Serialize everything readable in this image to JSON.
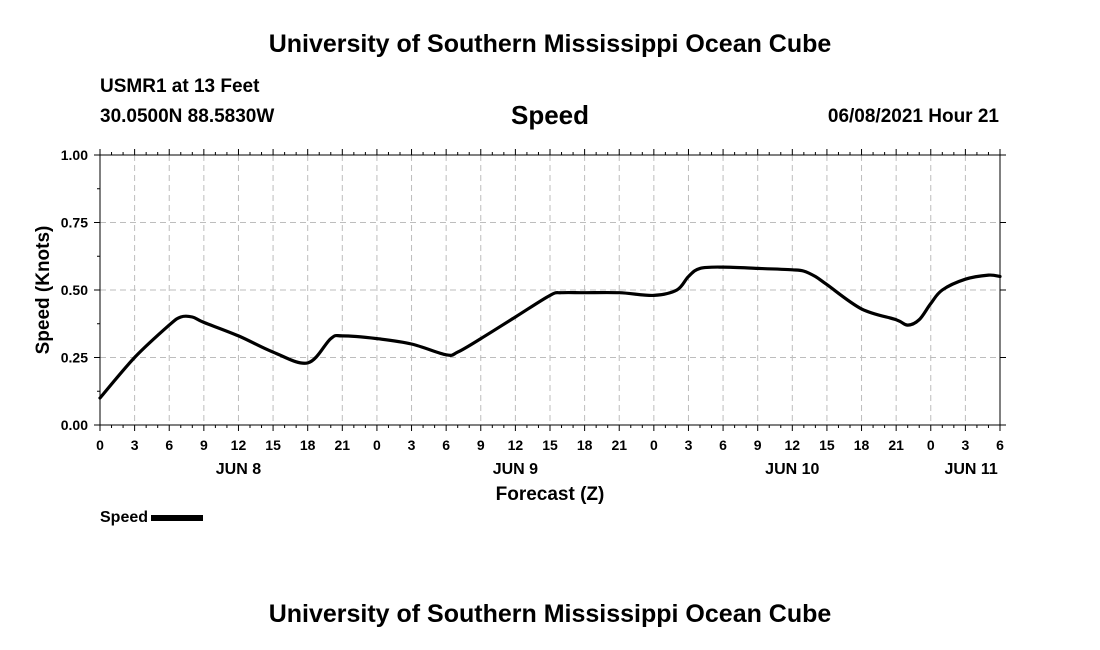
{
  "header": {
    "title": "University of Southern Mississippi Ocean Cube",
    "station": "USMR1 at 13 Feet",
    "coordinates": "30.0500N  88.5830W",
    "variable_title": "Speed",
    "datetime": "06/08/2021 Hour 21"
  },
  "footer": {
    "title": "University of Southern Mississippi Ocean Cube"
  },
  "legend": {
    "label": "Speed",
    "color": "#000000"
  },
  "chart_data": {
    "type": "line",
    "title": "Speed",
    "xlabel": "Forecast (Z)",
    "ylabel": "Speed (Knots)",
    "xlim": [
      0,
      78
    ],
    "ylim": [
      0,
      1
    ],
    "y_ticks": [
      0,
      0.25,
      0.5,
      0.75,
      1.0
    ],
    "y_tick_labels": [
      "0.00",
      "0.25",
      "0.50",
      "0.75",
      "1.00"
    ],
    "x_ticks": [
      0,
      3,
      6,
      9,
      12,
      15,
      18,
      21,
      24,
      27,
      30,
      33,
      36,
      39,
      42,
      45,
      48,
      51,
      54,
      57,
      60,
      63,
      66,
      69,
      72,
      75,
      78
    ],
    "x_tick_labels": [
      "0",
      "3",
      "6",
      "9",
      "12",
      "15",
      "18",
      "21",
      "0",
      "3",
      "6",
      "9",
      "12",
      "15",
      "18",
      "21",
      "0",
      "3",
      "6",
      "9",
      "12",
      "15",
      "18",
      "21",
      "0",
      "3",
      "6"
    ],
    "date_labels": [
      {
        "label": "JUN 8",
        "hour": 12
      },
      {
        "label": "JUN 9",
        "hour": 36
      },
      {
        "label": "JUN 10",
        "hour": 60
      },
      {
        "label": "JUN 11",
        "hour": 75.5
      }
    ],
    "grid": true,
    "series": [
      {
        "name": "Speed",
        "color": "#000000",
        "x": [
          0,
          3,
          6,
          7,
          8,
          9,
          12,
          15,
          18,
          20,
          21,
          24,
          27,
          30,
          31,
          33,
          36,
          39,
          40,
          42,
          45,
          48,
          50,
          51,
          52,
          54,
          57,
          60,
          61,
          62,
          63,
          66,
          69,
          70,
          71,
          72,
          73,
          75,
          77,
          78
        ],
        "values": [
          0.1,
          0.25,
          0.37,
          0.4,
          0.4,
          0.38,
          0.33,
          0.27,
          0.23,
          0.32,
          0.33,
          0.32,
          0.3,
          0.26,
          0.27,
          0.32,
          0.4,
          0.48,
          0.49,
          0.49,
          0.49,
          0.48,
          0.5,
          0.55,
          0.58,
          0.585,
          0.58,
          0.575,
          0.57,
          0.55,
          0.52,
          0.43,
          0.39,
          0.37,
          0.39,
          0.45,
          0.5,
          0.54,
          0.555,
          0.55
        ]
      }
    ]
  }
}
